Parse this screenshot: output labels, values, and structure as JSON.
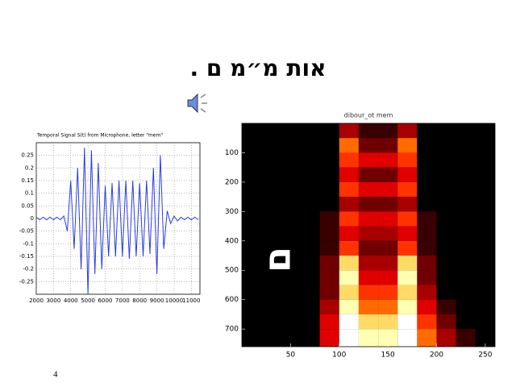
{
  "slide": {
    "title": "אות מ״מ ם .",
    "page_number": "4"
  },
  "chart_data": [
    {
      "type": "line",
      "title": "Temporal Signal S(t) from Microphone, letter \"mem\"",
      "color": "#2b3de0",
      "x": [
        2000,
        2200,
        2400,
        2600,
        2800,
        3000,
        3200,
        3400,
        3600,
        3800,
        4000,
        4200,
        4400,
        4600,
        4800,
        5000,
        5200,
        5400,
        5600,
        5800,
        6000,
        6200,
        6400,
        6600,
        6800,
        7000,
        7200,
        7400,
        7600,
        7800,
        8000,
        8200,
        8400,
        8600,
        8800,
        9000,
        9200,
        9400,
        9600,
        9800,
        10000,
        10200,
        10400,
        10600,
        10800,
        11000,
        11200,
        11400
      ],
      "values": [
        0.005,
        -0.005,
        0.005,
        -0.005,
        0.005,
        -0.005,
        0.005,
        -0.005,
        0.01,
        -0.05,
        0.15,
        -0.12,
        0.2,
        -0.2,
        0.28,
        -0.3,
        0.27,
        -0.22,
        0.22,
        -0.2,
        0.13,
        -0.15,
        0.14,
        -0.15,
        0.15,
        -0.15,
        0.15,
        -0.16,
        0.15,
        -0.15,
        0.14,
        -0.15,
        0.15,
        -0.14,
        0.2,
        -0.22,
        0.25,
        -0.12,
        0.03,
        -0.02,
        0.01,
        -0.01,
        0.005,
        -0.005,
        0.005,
        -0.005,
        0.005,
        -0.005
      ],
      "xlim": [
        2000,
        11500
      ],
      "xticks": [
        2000,
        3000,
        4000,
        5000,
        6000,
        7000,
        8000,
        9000,
        10000,
        11000
      ],
      "ylim": [
        -0.3,
        0.3
      ],
      "yticks": [
        0.25,
        0.2,
        0.15,
        0.1,
        0.05,
        0,
        -0.05,
        -0.1,
        -0.15,
        -0.2,
        -0.25
      ],
      "grid": true
    },
    {
      "type": "heatmap",
      "title": "dibour_ot mem",
      "annotation": "ם",
      "colormap": "hot",
      "x_bins": [
        0,
        20,
        40,
        60,
        80,
        100,
        120,
        140,
        160,
        180,
        200,
        220,
        240,
        260
      ],
      "y_bins": [
        0,
        50,
        100,
        150,
        200,
        250,
        300,
        350,
        400,
        450,
        500,
        550,
        600,
        650,
        700,
        760
      ],
      "z": [
        [
          0,
          0,
          0,
          0,
          0,
          0.3,
          0.1,
          0.1,
          0.3,
          0,
          0,
          0,
          0
        ],
        [
          0,
          0,
          0,
          0,
          0,
          0.6,
          0.2,
          0.2,
          0.6,
          0,
          0,
          0,
          0
        ],
        [
          0,
          0,
          0,
          0,
          0,
          0.5,
          0.4,
          0.4,
          0.5,
          0,
          0,
          0,
          0
        ],
        [
          0,
          0,
          0,
          0,
          0,
          0.4,
          0.2,
          0.2,
          0.4,
          0,
          0,
          0,
          0
        ],
        [
          0,
          0,
          0,
          0,
          0,
          0.5,
          0.4,
          0.4,
          0.5,
          0,
          0,
          0,
          0
        ],
        [
          0,
          0,
          0,
          0,
          0,
          0.3,
          0.2,
          0.2,
          0.3,
          0,
          0,
          0,
          0
        ],
        [
          0,
          0,
          0,
          0,
          0.1,
          0.5,
          0.4,
          0.4,
          0.5,
          0.1,
          0,
          0,
          0
        ],
        [
          0,
          0,
          0,
          0,
          0.1,
          0.4,
          0.3,
          0.3,
          0.4,
          0.1,
          0,
          0,
          0
        ],
        [
          0,
          0,
          0,
          0,
          0.1,
          0.5,
          0.2,
          0.2,
          0.5,
          0.1,
          0,
          0,
          0
        ],
        [
          0,
          0,
          0,
          0,
          0.2,
          0.8,
          0.3,
          0.3,
          0.8,
          0.2,
          0,
          0,
          0
        ],
        [
          0,
          0,
          0,
          0,
          0.2,
          0.9,
          0.4,
          0.4,
          0.9,
          0.2,
          0,
          0,
          0
        ],
        [
          0,
          0,
          0,
          0,
          0.2,
          0.8,
          0.5,
          0.5,
          0.8,
          0.3,
          0,
          0,
          0
        ],
        [
          0,
          0,
          0,
          0,
          0.3,
          0.9,
          0.6,
          0.6,
          0.9,
          0.4,
          0.1,
          0,
          0
        ],
        [
          0,
          0,
          0,
          0,
          0.4,
          1,
          0.8,
          0.8,
          1,
          0.5,
          0.2,
          0,
          0
        ],
        [
          0,
          0,
          0,
          0,
          0.4,
          1,
          0.9,
          0.9,
          1,
          0.6,
          0.3,
          0.1,
          0
        ]
      ],
      "xlim": [
        0,
        260
      ],
      "xticks": [
        50,
        100,
        150,
        200,
        250
      ],
      "ylim": [
        0,
        760
      ],
      "yticks": [
        100,
        200,
        300,
        400,
        500,
        600,
        700
      ],
      "y_reversed": true
    }
  ]
}
